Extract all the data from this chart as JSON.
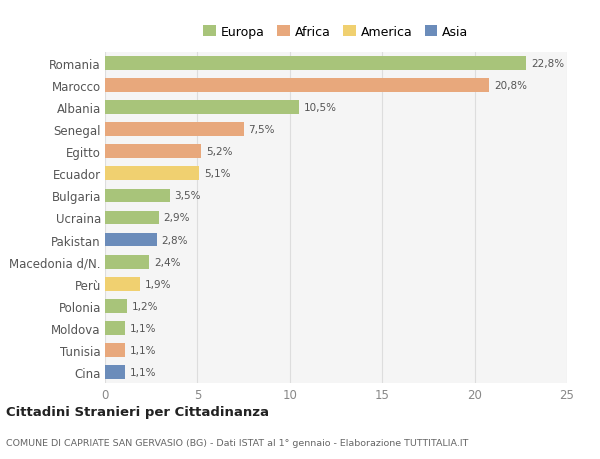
{
  "countries": [
    "Romania",
    "Marocco",
    "Albania",
    "Senegal",
    "Egitto",
    "Ecuador",
    "Bulgaria",
    "Ucraina",
    "Pakistan",
    "Macedonia d/N.",
    "Perù",
    "Polonia",
    "Moldova",
    "Tunisia",
    "Cina"
  ],
  "values": [
    22.8,
    20.8,
    10.5,
    7.5,
    5.2,
    5.1,
    3.5,
    2.9,
    2.8,
    2.4,
    1.9,
    1.2,
    1.1,
    1.1,
    1.1
  ],
  "labels": [
    "22,8%",
    "20,8%",
    "10,5%",
    "7,5%",
    "5,2%",
    "5,1%",
    "3,5%",
    "2,9%",
    "2,8%",
    "2,4%",
    "1,9%",
    "1,2%",
    "1,1%",
    "1,1%",
    "1,1%"
  ],
  "continents": [
    "Europa",
    "Africa",
    "Europa",
    "Africa",
    "Africa",
    "America",
    "Europa",
    "Europa",
    "Asia",
    "Europa",
    "America",
    "Europa",
    "Europa",
    "Africa",
    "Asia"
  ],
  "continent_colors": {
    "Europa": "#a8c47a",
    "Africa": "#e8a87c",
    "America": "#f0d070",
    "Asia": "#6b8cba"
  },
  "legend_order": [
    "Europa",
    "Africa",
    "America",
    "Asia"
  ],
  "title": "Cittadini Stranieri per Cittadinanza",
  "subtitle": "COMUNE DI CAPRIATE SAN GERVASIO (BG) - Dati ISTAT al 1° gennaio - Elaborazione TUTTITALIA.IT",
  "xlim": [
    0,
    25
  ],
  "xticks": [
    0,
    5,
    10,
    15,
    20,
    25
  ],
  "chart_bg": "#f5f5f5",
  "fig_bg": "#ffffff",
  "grid_color": "#dddddd"
}
